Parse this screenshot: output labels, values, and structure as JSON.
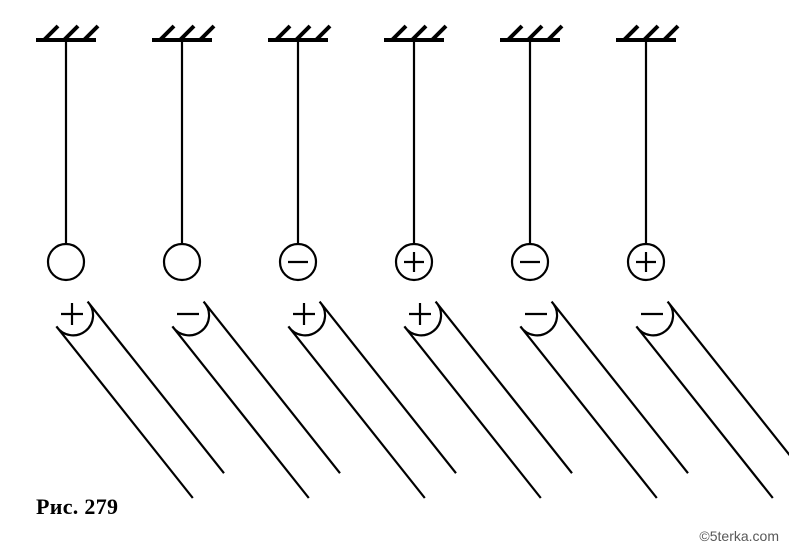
{
  "diagram": {
    "type": "infographic",
    "background_color": "#ffffff",
    "stroke_color": "#000000",
    "hatch_stroke_width": 4,
    "thin_stroke_width": 2.2,
    "ball_radius": 18,
    "rod_tip_radius": 20,
    "pendulums": [
      {
        "ball_sign": "",
        "rod_sign": "+"
      },
      {
        "ball_sign": "",
        "rod_sign": "-"
      },
      {
        "ball_sign": "-",
        "rod_sign": "+"
      },
      {
        "ball_sign": "+",
        "rod_sign": "+"
      },
      {
        "ball_sign": "-",
        "rod_sign": "-"
      },
      {
        "ball_sign": "+",
        "rod_sign": "-"
      }
    ]
  },
  "caption": {
    "label": "Рис.",
    "number": "279",
    "fontsize_pt": 22
  },
  "watermark": {
    "text": "©5terka.com"
  },
  "colors": {
    "text": "#000000",
    "watermark": "#585858"
  }
}
